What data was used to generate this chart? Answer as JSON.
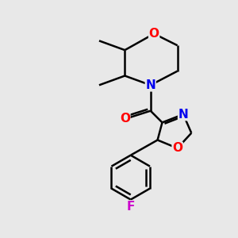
{
  "background_color": "#e8e8e8",
  "bond_color": "#000000",
  "bond_width": 1.8,
  "atom_colors": {
    "O": "#ff0000",
    "N": "#0000ee",
    "F": "#cc00cc",
    "C": "#000000"
  },
  "font_size": 11,
  "figsize": [
    3.0,
    3.0
  ],
  "dpi": 100
}
